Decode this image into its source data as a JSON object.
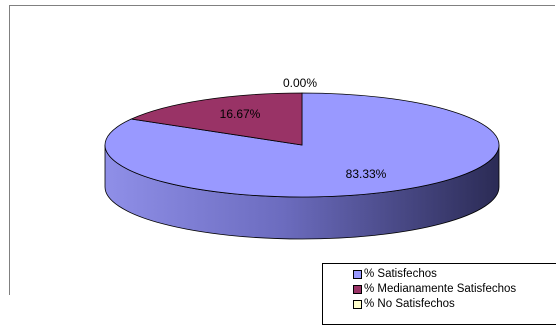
{
  "chart_data": {
    "type": "pie",
    "style": "3d",
    "categories": [
      "% Satisfechos",
      "% Medianamente Satisfechos",
      "% No Satisfechos"
    ],
    "values": [
      83.33,
      16.67,
      0.0
    ],
    "data_labels": [
      "83.33%",
      "16.67%",
      "0.00%"
    ],
    "colors": [
      "#9999ff",
      "#993366",
      "#ffffcc"
    ],
    "legend_position": "bottom-right"
  }
}
